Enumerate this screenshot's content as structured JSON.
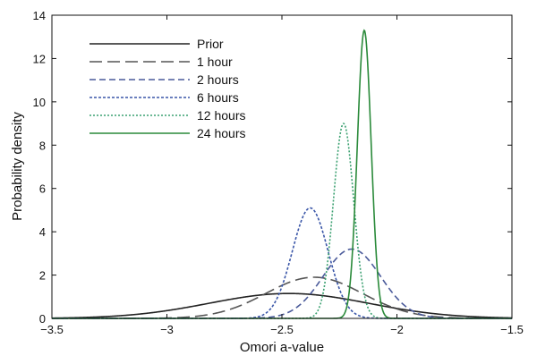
{
  "chart_data": {
    "type": "line",
    "title": "",
    "xlabel": "Omori a-value",
    "ylabel": "Probability density",
    "xlim": [
      -3.5,
      -1.5
    ],
    "ylim": [
      0,
      14
    ],
    "xticks": [
      -3.5,
      -3,
      -2.5,
      -2,
      -1.5
    ],
    "xtick_labels": [
      "−3.5",
      "−3",
      "−2.5",
      "−2",
      "−1.5"
    ],
    "yticks": [
      0,
      2,
      4,
      6,
      8,
      10,
      12,
      14
    ],
    "ytick_labels": [
      "0",
      "2",
      "4",
      "6",
      "8",
      "10",
      "12",
      "14"
    ],
    "grid": false,
    "legend_position": "top-left",
    "series": [
      {
        "name": "Prior",
        "mean": -2.47,
        "sd": 0.347,
        "peak": 1.15,
        "color": "#222222",
        "dash": ""
      },
      {
        "name": "1 hour",
        "mean": -2.36,
        "sd": 0.21,
        "peak": 1.9,
        "color": "#555555",
        "dash": "14,6"
      },
      {
        "name": "2 hours",
        "mean": -2.196,
        "sd": 0.125,
        "peak": 3.2,
        "color": "#4a5a9a",
        "dash": "7,4"
      },
      {
        "name": "6 hours",
        "mean": -2.377,
        "sd": 0.078,
        "peak": 5.1,
        "color": "#3a56a8",
        "dash": "3,2"
      },
      {
        "name": "12 hours",
        "mean": -2.232,
        "sd": 0.044,
        "peak": 9.0,
        "color": "#3aa070",
        "dash": "2,2"
      },
      {
        "name": "24 hours",
        "mean": -2.142,
        "sd": 0.03,
        "peak": 13.3,
        "color": "#2a8a3a",
        "dash": ""
      }
    ]
  }
}
